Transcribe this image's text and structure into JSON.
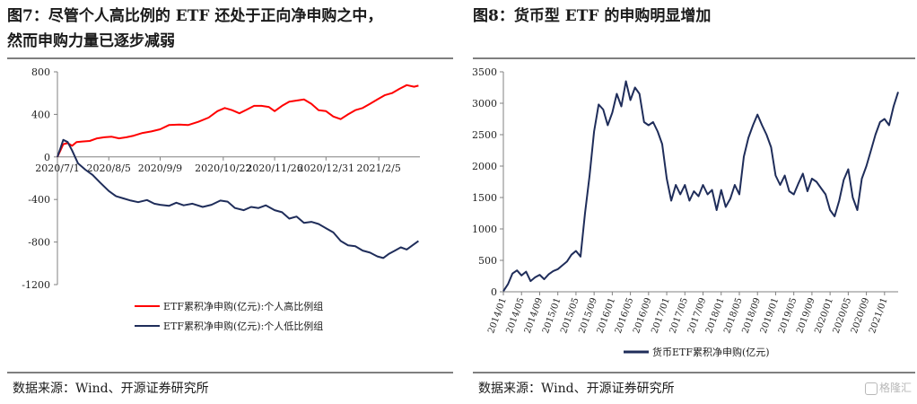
{
  "left": {
    "title_line1": "图7：尽管个人高比例的 ETF 还处于正向净申购之中，",
    "title_line2": "然而申购力量已逐步减弱",
    "source": "数据来源：Wind、开源证券研究所"
  },
  "right": {
    "title": "图8：货币型 ETF 的申购明显增加",
    "source": "数据来源：Wind、开源证券研究所"
  },
  "watermark": "格隆汇",
  "colors": {
    "red": "#ff0000",
    "navy": "#1f2d5a",
    "axis": "#808080",
    "rule": "#7f7f7f"
  },
  "chart_data": [
    {
      "type": "line",
      "xlim": [
        "2020-07-01",
        "2021-03-05"
      ],
      "ylim": [
        -1200,
        800
      ],
      "y_ticks": [
        -1200,
        -800,
        -400,
        0,
        400,
        800
      ],
      "y_tick_labels": [
        "-1200",
        "-800",
        "-400",
        "0",
        "400",
        "800"
      ],
      "x_tick_dates": [
        "2020-07-01",
        "2020-08-05",
        "2020-09-09",
        "2020-10-22",
        "2020-11-26",
        "2020-12-31",
        "2021-02-05"
      ],
      "x_tick_labels": [
        "2020/7/1",
        "2020/8/5",
        "2020/9/9",
        "2020/10/22",
        "2020/11/26",
        "2020/12/31",
        "2021/2/5"
      ],
      "legend_position": "bottom",
      "series": [
        {
          "name": "ETF累积净申购(亿元):个人高比例组",
          "color": "#ff0000",
          "points": [
            [
              "2020-07-01",
              0
            ],
            [
              "2020-07-03",
              60
            ],
            [
              "2020-07-05",
              120
            ],
            [
              "2020-07-08",
              130
            ],
            [
              "2020-07-11",
              105
            ],
            [
              "2020-07-14",
              140
            ],
            [
              "2020-07-18",
              145
            ],
            [
              "2020-07-23",
              150
            ],
            [
              "2020-07-28",
              175
            ],
            [
              "2020-08-02",
              185
            ],
            [
              "2020-08-07",
              190
            ],
            [
              "2020-08-12",
              175
            ],
            [
              "2020-08-17",
              185
            ],
            [
              "2020-08-22",
              200
            ],
            [
              "2020-08-28",
              225
            ],
            [
              "2020-09-03",
              240
            ],
            [
              "2020-09-09",
              260
            ],
            [
              "2020-09-15",
              300
            ],
            [
              "2020-09-22",
              305
            ],
            [
              "2020-09-28",
              300
            ],
            [
              "2020-10-05",
              330
            ],
            [
              "2020-10-12",
              370
            ],
            [
              "2020-10-18",
              430
            ],
            [
              "2020-10-23",
              460
            ],
            [
              "2020-10-28",
              440
            ],
            [
              "2020-11-02",
              410
            ],
            [
              "2020-11-07",
              445
            ],
            [
              "2020-11-12",
              480
            ],
            [
              "2020-11-17",
              480
            ],
            [
              "2020-11-22",
              470
            ],
            [
              "2020-11-26",
              430
            ],
            [
              "2020-12-01",
              480
            ],
            [
              "2020-12-06",
              520
            ],
            [
              "2020-12-11",
              530
            ],
            [
              "2020-12-16",
              540
            ],
            [
              "2020-12-21",
              500
            ],
            [
              "2020-12-26",
              440
            ],
            [
              "2020-12-31",
              430
            ],
            [
              "2021-01-05",
              380
            ],
            [
              "2021-01-10",
              355
            ],
            [
              "2021-01-15",
              400
            ],
            [
              "2021-01-20",
              440
            ],
            [
              "2021-01-25",
              460
            ],
            [
              "2021-01-30",
              500
            ],
            [
              "2021-02-04",
              540
            ],
            [
              "2021-02-09",
              580
            ],
            [
              "2021-02-14",
              600
            ],
            [
              "2021-02-19",
              640
            ],
            [
              "2021-02-24",
              675
            ],
            [
              "2021-03-01",
              660
            ],
            [
              "2021-03-04",
              670
            ]
          ]
        },
        {
          "name": "ETF累积净申购(亿元):个人低比例组",
          "color": "#1f2d5a",
          "points": [
            [
              "2020-07-01",
              0
            ],
            [
              "2020-07-03",
              80
            ],
            [
              "2020-07-05",
              160
            ],
            [
              "2020-07-08",
              140
            ],
            [
              "2020-07-11",
              60
            ],
            [
              "2020-07-15",
              -60
            ],
            [
              "2020-07-20",
              -120
            ],
            [
              "2020-07-25",
              -170
            ],
            [
              "2020-07-30",
              -240
            ],
            [
              "2020-08-05",
              -320
            ],
            [
              "2020-08-10",
              -370
            ],
            [
              "2020-08-15",
              -390
            ],
            [
              "2020-08-20",
              -410
            ],
            [
              "2020-08-25",
              -425
            ],
            [
              "2020-08-31",
              -405
            ],
            [
              "2020-09-05",
              -440
            ],
            [
              "2020-09-09",
              -450
            ],
            [
              "2020-09-15",
              -460
            ],
            [
              "2020-09-20",
              -430
            ],
            [
              "2020-09-25",
              -455
            ],
            [
              "2020-10-01",
              -440
            ],
            [
              "2020-10-08",
              -470
            ],
            [
              "2020-10-14",
              -450
            ],
            [
              "2020-10-20",
              -410
            ],
            [
              "2020-10-25",
              -420
            ],
            [
              "2020-10-30",
              -480
            ],
            [
              "2020-11-05",
              -500
            ],
            [
              "2020-11-10",
              -470
            ],
            [
              "2020-11-15",
              -480
            ],
            [
              "2020-11-20",
              -455
            ],
            [
              "2020-11-26",
              -500
            ],
            [
              "2020-12-01",
              -520
            ],
            [
              "2020-12-06",
              -580
            ],
            [
              "2020-12-11",
              -560
            ],
            [
              "2020-12-16",
              -620
            ],
            [
              "2020-12-21",
              -610
            ],
            [
              "2020-12-26",
              -630
            ],
            [
              "2020-12-31",
              -670
            ],
            [
              "2021-01-05",
              -710
            ],
            [
              "2021-01-10",
              -790
            ],
            [
              "2021-01-15",
              -830
            ],
            [
              "2021-01-20",
              -840
            ],
            [
              "2021-01-25",
              -880
            ],
            [
              "2021-01-30",
              -900
            ],
            [
              "2021-02-04",
              -935
            ],
            [
              "2021-02-08",
              -950
            ],
            [
              "2021-02-12",
              -910
            ],
            [
              "2021-02-16",
              -880
            ],
            [
              "2021-02-20",
              -850
            ],
            [
              "2021-02-24",
              -870
            ],
            [
              "2021-02-28",
              -830
            ],
            [
              "2021-03-04",
              -790
            ]
          ]
        }
      ]
    },
    {
      "type": "line",
      "xlim": [
        "2014-01",
        "2021-04"
      ],
      "ylim": [
        0,
        3500
      ],
      "y_ticks": [
        0,
        500,
        1000,
        1500,
        2000,
        2500,
        3000,
        3500
      ],
      "y_tick_labels": [
        "0",
        "500",
        "1000",
        "1500",
        "2000",
        "2500",
        "3000",
        "3500"
      ],
      "x_tick_labels": [
        "2014/01",
        "2014/05",
        "2014/09",
        "2015/01",
        "2015/05",
        "2015/09",
        "2016/01",
        "2016/05",
        "2016/09",
        "2017/01",
        "2017/05",
        "2017/09",
        "2018/01",
        "2018/05",
        "2018/09",
        "2019/01",
        "2019/05",
        "2019/09",
        "2020/01",
        "2020/05",
        "2020/09",
        "2021/01"
      ],
      "legend_position": "bottom",
      "series": [
        {
          "name": "货币ETF累积净申购(亿元)",
          "color": "#1f2d5a",
          "points": [
            [
              "2014-01",
              10
            ],
            [
              "2014-02",
              120
            ],
            [
              "2014-03",
              290
            ],
            [
              "2014-04",
              340
            ],
            [
              "2014-05",
              260
            ],
            [
              "2014-06",
              320
            ],
            [
              "2014-07",
              170
            ],
            [
              "2014-08",
              230
            ],
            [
              "2014-09",
              270
            ],
            [
              "2014-10",
              200
            ],
            [
              "2014-11",
              280
            ],
            [
              "2014-12",
              330
            ],
            [
              "2015-01",
              360
            ],
            [
              "2015-02",
              420
            ],
            [
              "2015-03",
              480
            ],
            [
              "2015-04",
              590
            ],
            [
              "2015-05",
              650
            ],
            [
              "2015-06",
              560
            ],
            [
              "2015-07",
              1250
            ],
            [
              "2015-08",
              1850
            ],
            [
              "2015-09",
              2550
            ],
            [
              "2015-10",
              2980
            ],
            [
              "2015-11",
              2900
            ],
            [
              "2015-12",
              2650
            ],
            [
              "2016-01",
              2850
            ],
            [
              "2016-02",
              3150
            ],
            [
              "2016-03",
              2950
            ],
            [
              "2016-04",
              3350
            ],
            [
              "2016-05",
              3050
            ],
            [
              "2016-06",
              3250
            ],
            [
              "2016-07",
              3150
            ],
            [
              "2016-08",
              2700
            ],
            [
              "2016-09",
              2650
            ],
            [
              "2016-10",
              2700
            ],
            [
              "2016-11",
              2550
            ],
            [
              "2016-12",
              2350
            ],
            [
              "2017-01",
              1800
            ],
            [
              "2017-02",
              1450
            ],
            [
              "2017-03",
              1700
            ],
            [
              "2017-04",
              1550
            ],
            [
              "2017-05",
              1700
            ],
            [
              "2017-06",
              1450
            ],
            [
              "2017-07",
              1600
            ],
            [
              "2017-08",
              1520
            ],
            [
              "2017-09",
              1700
            ],
            [
              "2017-10",
              1550
            ],
            [
              "2017-11",
              1620
            ],
            [
              "2017-12",
              1300
            ],
            [
              "2018-01",
              1620
            ],
            [
              "2018-02",
              1350
            ],
            [
              "2018-03",
              1480
            ],
            [
              "2018-04",
              1700
            ],
            [
              "2018-05",
              1550
            ],
            [
              "2018-06",
              2150
            ],
            [
              "2018-07",
              2450
            ],
            [
              "2018-08",
              2650
            ],
            [
              "2018-09",
              2820
            ],
            [
              "2018-10",
              2650
            ],
            [
              "2018-11",
              2500
            ],
            [
              "2018-12",
              2300
            ],
            [
              "2019-01",
              1850
            ],
            [
              "2019-02",
              1700
            ],
            [
              "2019-03",
              1850
            ],
            [
              "2019-04",
              1600
            ],
            [
              "2019-05",
              1550
            ],
            [
              "2019-06",
              1720
            ],
            [
              "2019-07",
              1880
            ],
            [
              "2019-08",
              1600
            ],
            [
              "2019-09",
              1800
            ],
            [
              "2019-10",
              1750
            ],
            [
              "2019-11",
              1650
            ],
            [
              "2019-12",
              1550
            ],
            [
              "2020-01",
              1300
            ],
            [
              "2020-02",
              1200
            ],
            [
              "2020-03",
              1450
            ],
            [
              "2020-04",
              1780
            ],
            [
              "2020-05",
              1950
            ],
            [
              "2020-06",
              1500
            ],
            [
              "2020-07",
              1300
            ],
            [
              "2020-08",
              1800
            ],
            [
              "2020-09",
              2000
            ],
            [
              "2020-10",
              2250
            ],
            [
              "2020-11",
              2500
            ],
            [
              "2020-12",
              2700
            ],
            [
              "2021-01",
              2750
            ],
            [
              "2021-02",
              2650
            ],
            [
              "2021-03",
              2950
            ],
            [
              "2021-04",
              3180
            ]
          ]
        }
      ]
    }
  ]
}
